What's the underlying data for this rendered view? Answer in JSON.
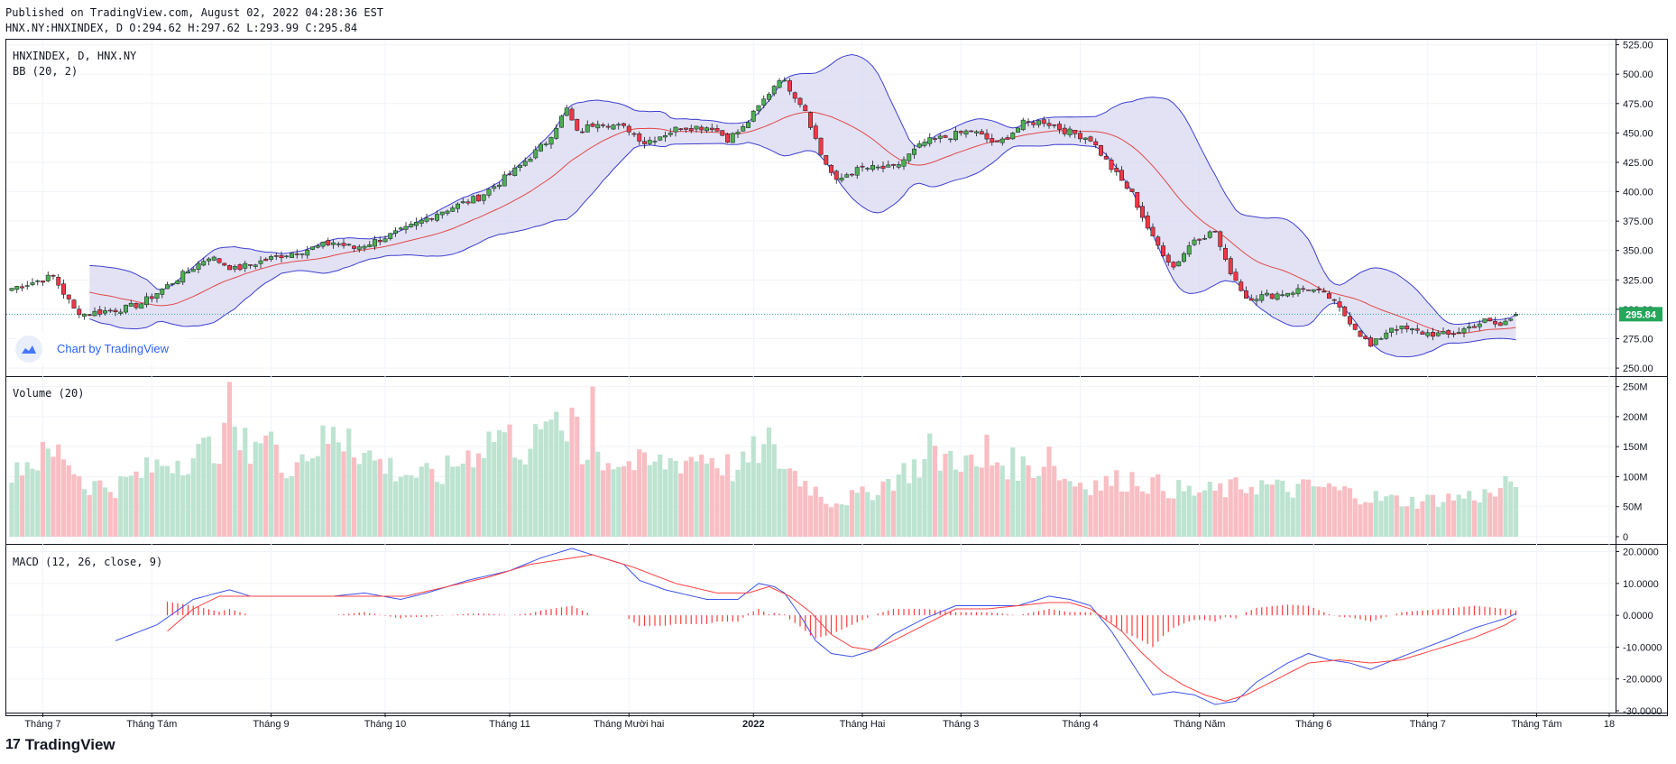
{
  "header": {
    "published": "Published on TradingView.com, August 02, 2022 04:28:36 EST",
    "ohlc": "HNX.NY:HNXINDEX, D O:294.62 H:297.62 L:293.99 C:295.84"
  },
  "legend": {
    "symbol": "HNXINDEX, D, HNX.NY",
    "bb": "BB (20, 2)",
    "volume": "Volume (20)",
    "macd": "MACD (12, 26, close, 9)"
  },
  "watermark": {
    "text": "Chart by TradingView"
  },
  "footer": {
    "brand": "TradingView",
    "brand_glyph": "17"
  },
  "colors": {
    "up": "#26a69a",
    "up_body": "#4caf50",
    "down": "#ef5350",
    "down_body": "#f23645",
    "bb_band": "#3f3fd0",
    "bb_fill": "#d8d8f0",
    "bb_basis": "#e04848",
    "vol_up": "#b6e0cc",
    "vol_down": "#f7b7bd",
    "macd_line": "#3d53e8",
    "signal_line": "#ff4040",
    "hist": "#ff3b3b",
    "price_label_bg": "#26a65b",
    "last_price_line": "#26a69a"
  },
  "chart_data": {
    "type": "candlestick",
    "symbol": "HNX.NY:HNXINDEX",
    "interval": "D",
    "last_price": 295.84,
    "last_price_label": "295.84",
    "price_axis": {
      "ticks": [
        "525.00",
        "500.00",
        "475.00",
        "450.00",
        "425.00",
        "400.00",
        "375.00",
        "350.00",
        "325.00",
        "300.00",
        "275.00",
        "250.00"
      ],
      "range": [
        247,
        527
      ]
    },
    "volume_axis": {
      "ticks": [
        "250M",
        "200M",
        "150M",
        "100M",
        "50M",
        "0"
      ],
      "range": [
        0,
        260
      ]
    },
    "macd_axis": {
      "ticks": [
        "20.0000",
        "10.0000",
        "0.0000",
        "-10.0000",
        "-20.0000",
        "-30.0000"
      ],
      "range": [
        -30,
        21
      ]
    },
    "time_labels": [
      "Tháng 7",
      "Tháng Tám",
      "Tháng 9",
      "Tháng 10",
      "Tháng 11",
      "Tháng Mười hai",
      "2022",
      "Tháng Hai",
      "Tháng 3",
      "Tháng 4",
      "Tháng Năm",
      "Tháng 6",
      "Tháng 7",
      "Tháng Tám",
      "18"
    ],
    "time_label_bars": [
      6,
      27,
      50,
      72,
      96,
      119,
      143,
      164,
      183,
      206,
      229,
      251,
      273,
      294,
      308
    ],
    "bar_count": 291,
    "close_keypoints": [
      [
        0,
        318
      ],
      [
        8,
        328
      ],
      [
        12,
        300
      ],
      [
        14,
        296
      ],
      [
        22,
        301
      ],
      [
        25,
        305
      ],
      [
        30,
        320
      ],
      [
        38,
        345
      ],
      [
        43,
        334
      ],
      [
        52,
        346
      ],
      [
        58,
        352
      ],
      [
        62,
        357
      ],
      [
        66,
        352
      ],
      [
        70,
        358
      ],
      [
        76,
        368
      ],
      [
        82,
        382
      ],
      [
        90,
        395
      ],
      [
        97,
        418
      ],
      [
        103,
        442
      ],
      [
        107,
        470
      ],
      [
        109,
        450
      ],
      [
        113,
        460
      ],
      [
        119,
        453
      ],
      [
        122,
        442
      ],
      [
        129,
        455
      ],
      [
        135,
        455
      ],
      [
        138,
        445
      ],
      [
        141,
        454
      ],
      [
        145,
        478
      ],
      [
        148,
        497
      ],
      [
        150,
        488
      ],
      [
        153,
        470
      ],
      [
        156,
        432
      ],
      [
        159,
        408
      ],
      [
        161,
        415
      ],
      [
        164,
        420
      ],
      [
        170,
        420
      ],
      [
        176,
        442
      ],
      [
        185,
        452
      ],
      [
        190,
        440
      ],
      [
        195,
        458
      ],
      [
        199,
        460
      ],
      [
        203,
        452
      ],
      [
        208,
        445
      ],
      [
        212,
        420
      ],
      [
        216,
        398
      ],
      [
        220,
        360
      ],
      [
        224,
        336
      ],
      [
        228,
        360
      ],
      [
        232,
        366
      ],
      [
        234,
        340
      ],
      [
        238,
        310
      ],
      [
        243,
        312
      ],
      [
        250,
        318
      ],
      [
        254,
        310
      ],
      [
        258,
        290
      ],
      [
        262,
        268
      ],
      [
        266,
        285
      ],
      [
        272,
        280
      ],
      [
        277,
        278
      ],
      [
        284,
        290
      ],
      [
        287,
        286
      ],
      [
        290,
        295.84
      ]
    ],
    "volume_keypoints": [
      [
        0,
        120
      ],
      [
        10,
        145
      ],
      [
        14,
        90
      ],
      [
        20,
        85
      ],
      [
        30,
        130
      ],
      [
        36,
        140
      ],
      [
        40,
        160
      ],
      [
        45,
        155
      ],
      [
        48,
        175
      ],
      [
        52,
        120
      ],
      [
        58,
        150
      ],
      [
        62,
        170
      ],
      [
        65,
        165
      ],
      [
        70,
        130
      ],
      [
        75,
        110
      ],
      [
        82,
        100
      ],
      [
        88,
        140
      ],
      [
        94,
        180
      ],
      [
        99,
        150
      ],
      [
        104,
        180
      ],
      [
        110,
        150
      ],
      [
        116,
        130
      ],
      [
        122,
        120
      ],
      [
        128,
        130
      ],
      [
        134,
        140
      ],
      [
        140,
        110
      ],
      [
        144,
        150
      ],
      [
        148,
        130
      ],
      [
        152,
        100
      ],
      [
        158,
        60
      ],
      [
        164,
        70
      ],
      [
        168,
        90
      ],
      [
        174,
        120
      ],
      [
        178,
        130
      ],
      [
        182,
        140
      ],
      [
        186,
        115
      ],
      [
        190,
        130
      ],
      [
        195,
        120
      ],
      [
        200,
        120
      ],
      [
        204,
        95
      ],
      [
        210,
        90
      ],
      [
        216,
        100
      ],
      [
        222,
        85
      ],
      [
        228,
        75
      ],
      [
        234,
        80
      ],
      [
        240,
        90
      ],
      [
        246,
        80
      ],
      [
        252,
        85
      ],
      [
        258,
        75
      ],
      [
        264,
        65
      ],
      [
        270,
        60
      ],
      [
        276,
        65
      ],
      [
        282,
        70
      ],
      [
        287,
        75
      ],
      [
        290,
        105
      ]
    ],
    "volume_spikes": [
      [
        42,
        258
      ],
      [
        108,
        215
      ],
      [
        109,
        200
      ],
      [
        50,
        175
      ],
      [
        65,
        180
      ],
      [
        104,
        195
      ],
      [
        112,
        250
      ],
      [
        146,
        182
      ],
      [
        177,
        172
      ],
      [
        188,
        170
      ],
      [
        200,
        150
      ]
    ],
    "macd_line_keypoints": [
      [
        20,
        -8
      ],
      [
        28,
        -3
      ],
      [
        35,
        5
      ],
      [
        42,
        8
      ],
      [
        46,
        6
      ],
      [
        55,
        6
      ],
      [
        62,
        6
      ],
      [
        68,
        7
      ],
      [
        75,
        5
      ],
      [
        80,
        7
      ],
      [
        88,
        11
      ],
      [
        96,
        14
      ],
      [
        102,
        18
      ],
      [
        108,
        21
      ],
      [
        112,
        19
      ],
      [
        118,
        16
      ],
      [
        121,
        11
      ],
      [
        126,
        8
      ],
      [
        134,
        5
      ],
      [
        140,
        5
      ],
      [
        144,
        10
      ],
      [
        147,
        9
      ],
      [
        149,
        7
      ],
      [
        152,
        0
      ],
      [
        155,
        -8
      ],
      [
        158,
        -12
      ],
      [
        162,
        -13
      ],
      [
        166,
        -11
      ],
      [
        170,
        -6
      ],
      [
        176,
        -1
      ],
      [
        182,
        3
      ],
      [
        188,
        3
      ],
      [
        194,
        3
      ],
      [
        200,
        6
      ],
      [
        204,
        5
      ],
      [
        208,
        3
      ],
      [
        212,
        -5
      ],
      [
        216,
        -15
      ],
      [
        220,
        -25
      ],
      [
        224,
        -24
      ],
      [
        228,
        -25
      ],
      [
        232,
        -28
      ],
      [
        236,
        -27
      ],
      [
        240,
        -21
      ],
      [
        246,
        -15
      ],
      [
        250,
        -12
      ],
      [
        254,
        -14
      ],
      [
        258,
        -15
      ],
      [
        262,
        -17
      ],
      [
        268,
        -13
      ],
      [
        276,
        -8
      ],
      [
        282,
        -4
      ],
      [
        288,
        -1
      ],
      [
        290,
        0.5
      ]
    ],
    "signal_line_keypoints": [
      [
        30,
        -5
      ],
      [
        35,
        2
      ],
      [
        40,
        6
      ],
      [
        46,
        6
      ],
      [
        55,
        6
      ],
      [
        62,
        6
      ],
      [
        70,
        6
      ],
      [
        76,
        6
      ],
      [
        84,
        9
      ],
      [
        92,
        12
      ],
      [
        100,
        16
      ],
      [
        108,
        18
      ],
      [
        112,
        19
      ],
      [
        120,
        15
      ],
      [
        128,
        10
      ],
      [
        136,
        7
      ],
      [
        142,
        7
      ],
      [
        146,
        9
      ],
      [
        150,
        6
      ],
      [
        154,
        1
      ],
      [
        158,
        -6
      ],
      [
        162,
        -10
      ],
      [
        166,
        -11
      ],
      [
        170,
        -8
      ],
      [
        176,
        -3
      ],
      [
        182,
        2
      ],
      [
        188,
        2
      ],
      [
        194,
        3
      ],
      [
        200,
        4
      ],
      [
        204,
        4
      ],
      [
        208,
        2
      ],
      [
        214,
        -5
      ],
      [
        218,
        -12
      ],
      [
        222,
        -18
      ],
      [
        226,
        -22
      ],
      [
        230,
        -25
      ],
      [
        234,
        -27
      ],
      [
        238,
        -25
      ],
      [
        244,
        -20
      ],
      [
        250,
        -15
      ],
      [
        256,
        -14
      ],
      [
        262,
        -15
      ],
      [
        268,
        -14
      ],
      [
        276,
        -10
      ],
      [
        282,
        -7
      ],
      [
        288,
        -3
      ],
      [
        290,
        -1
      ]
    ],
    "macd_hist_start": 30,
    "bb_start": 15,
    "bb_period": 20,
    "bb_mult": 2
  }
}
